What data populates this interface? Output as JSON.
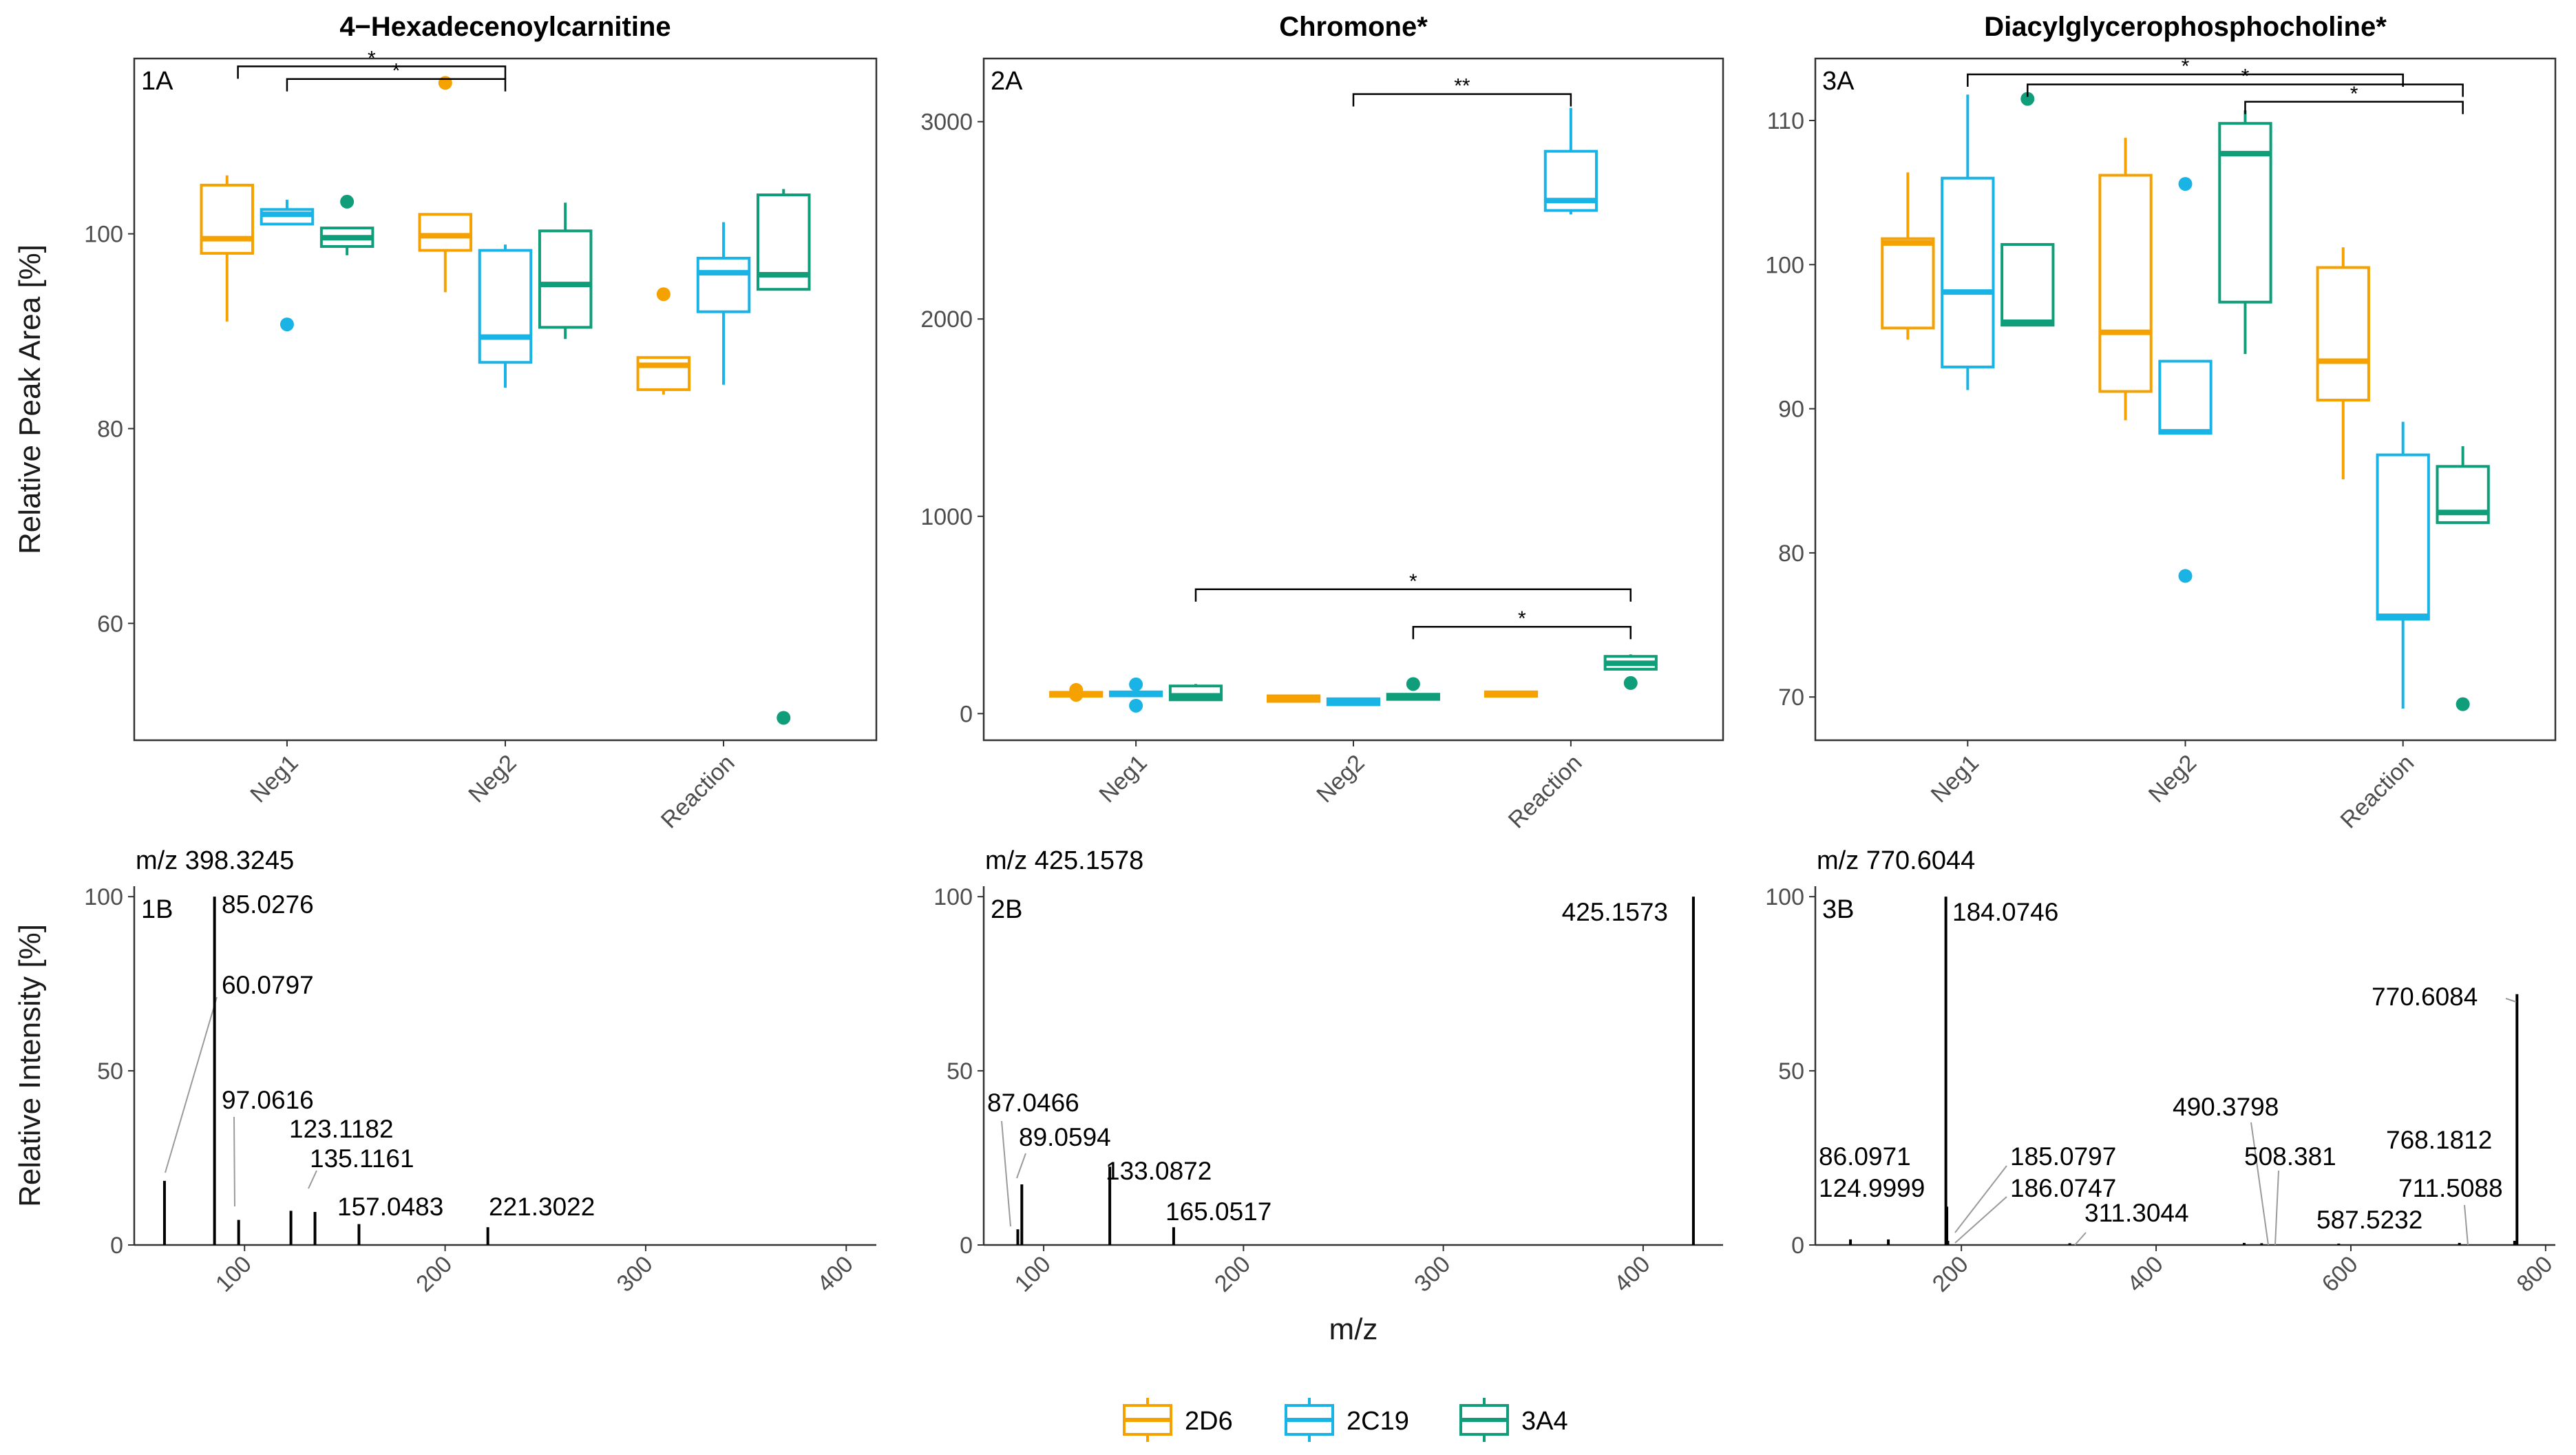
{
  "legend": {
    "items": [
      {
        "label": "2D6",
        "color": "#F5A100"
      },
      {
        "label": "2C19",
        "color": "#1AB3E6"
      },
      {
        "label": "3A4",
        "color": "#0F9E79"
      }
    ]
  },
  "chart_data": [
    {
      "id": "1A",
      "type": "box",
      "title": "4−Hexadecenoylcarnitine",
      "label": "1A",
      "ylabel": "Relative Peak Area [%]",
      "xlabel": "",
      "categories": [
        "Neg1",
        "Neg2",
        "Reaction"
      ],
      "ylim": [
        48,
        118
      ],
      "yticks": [
        60,
        80,
        100
      ],
      "series": [
        {
          "name": "2D6",
          "boxes": [
            {
              "q1": 98,
              "median": 99.5,
              "q3": 105,
              "wlo": 91,
              "whi": 106,
              "outliers": []
            },
            {
              "q1": 98.3,
              "median": 99.8,
              "q3": 102,
              "wlo": 94,
              "whi": 102,
              "outliers": [
                115.5
              ]
            },
            {
              "q1": 84,
              "median": 86.5,
              "q3": 87.3,
              "wlo": 83.5,
              "whi": 87.3,
              "outliers": [
                93.8
              ]
            }
          ]
        },
        {
          "name": "2C19",
          "boxes": [
            {
              "q1": 101,
              "median": 102,
              "q3": 102.5,
              "wlo": 101,
              "whi": 103.5,
              "outliers": [
                90.7
              ]
            },
            {
              "q1": 86.8,
              "median": 89.4,
              "q3": 98.3,
              "wlo": 84.2,
              "whi": 98.9,
              "outliers": []
            },
            {
              "q1": 92,
              "median": 96,
              "q3": 97.5,
              "wlo": 84.5,
              "whi": 101.2,
              "outliers": []
            }
          ]
        },
        {
          "name": "3A4",
          "boxes": [
            {
              "q1": 98.7,
              "median": 99.6,
              "q3": 100.6,
              "wlo": 97.8,
              "whi": 100.6,
              "outliers": [
                103.3
              ]
            },
            {
              "q1": 90.4,
              "median": 94.8,
              "q3": 100.3,
              "wlo": 89.2,
              "whi": 103.2,
              "outliers": []
            },
            {
              "q1": 94.3,
              "median": 95.8,
              "q3": 104,
              "wlo": 94.3,
              "whi": 104.6,
              "outliers": [
                50.3
              ]
            }
          ]
        }
      ],
      "brackets": [
        {
          "x1": 0.775,
          "x2": 2.0,
          "y": 117.2,
          "label": "*"
        },
        {
          "x1": 1.0,
          "x2": 2.0,
          "y": 115.9,
          "label": "*"
        }
      ]
    },
    {
      "id": "2A",
      "type": "box",
      "title": "Chromone*",
      "label": "2A",
      "ylabel": "",
      "xlabel": "",
      "categories": [
        "Neg1",
        "Neg2",
        "Reaction"
      ],
      "ylim": [
        -135,
        3320
      ],
      "yticks": [
        0,
        1000,
        2000,
        3000
      ],
      "series": [
        {
          "name": "2D6",
          "boxes": [
            {
              "q1": 88,
              "median": 98,
              "q3": 108,
              "wlo": 85,
              "whi": 110,
              "outliers": [
                120,
                95
              ]
            },
            {
              "q1": 62,
              "median": 75,
              "q3": 90,
              "wlo": 60,
              "whi": 92,
              "outliers": []
            },
            {
              "q1": 88,
              "median": 100,
              "q3": 110,
              "wlo": 82,
              "whi": 112,
              "outliers": []
            }
          ]
        },
        {
          "name": "2C19",
          "boxes": [
            {
              "q1": 90,
              "median": 100,
              "q3": 110,
              "wlo": 85,
              "whi": 115,
              "outliers": [
                148,
                40
              ]
            },
            {
              "q1": 45,
              "median": 60,
              "q3": 75,
              "wlo": 42,
              "whi": 78,
              "outliers": []
            },
            {
              "q1": 2550,
              "median": 2600,
              "q3": 2850,
              "wlo": 2530,
              "whi": 3070,
              "outliers": []
            }
          ]
        },
        {
          "name": "3A4",
          "boxes": [
            {
              "q1": 70,
              "median": 90,
              "q3": 140,
              "wlo": 65,
              "whi": 150,
              "outliers": []
            },
            {
              "q1": 72,
              "median": 85,
              "q3": 98,
              "wlo": 68,
              "whi": 100,
              "outliers": [
                150
              ]
            },
            {
              "q1": 225,
              "median": 255,
              "q3": 290,
              "wlo": 220,
              "whi": 300,
              "outliers": [
                155
              ]
            }
          ]
        }
      ],
      "brackets": [
        {
          "x1": 2.0,
          "x2": 3.0,
          "y": 3140,
          "label": "**"
        },
        {
          "x1": 1.275,
          "x2": 3.275,
          "y": 630,
          "label": "*"
        },
        {
          "x1": 2.275,
          "x2": 3.275,
          "y": 440,
          "label": "*"
        }
      ]
    },
    {
      "id": "3A",
      "type": "box",
      "title": "Diacylglycerophosphocholine*",
      "label": "3A",
      "ylabel": "",
      "xlabel": "",
      "categories": [
        "Neg1",
        "Neg2",
        "Reaction"
      ],
      "ylim": [
        67,
        114.3
      ],
      "yticks": [
        70,
        80,
        90,
        100,
        110
      ],
      "series": [
        {
          "name": "2D6",
          "boxes": [
            {
              "q1": 95.6,
              "median": 101.5,
              "q3": 101.8,
              "wlo": 94.8,
              "whi": 106.4,
              "outliers": []
            },
            {
              "q1": 91.2,
              "median": 95.3,
              "q3": 106.2,
              "wlo": 89.2,
              "whi": 108.8,
              "outliers": []
            },
            {
              "q1": 90.6,
              "median": 93.3,
              "q3": 99.8,
              "wlo": 85.1,
              "whi": 101.2,
              "outliers": []
            }
          ]
        },
        {
          "name": "2C19",
          "boxes": [
            {
              "q1": 92.9,
              "median": 98.1,
              "q3": 106,
              "wlo": 91.3,
              "whi": 111.8,
              "outliers": []
            },
            {
              "q1": 88.3,
              "median": 88.4,
              "q3": 93.3,
              "wlo": 88.3,
              "whi": 93.3,
              "outliers": [
                105.6,
                78.4
              ]
            },
            {
              "q1": 75.4,
              "median": 75.6,
              "q3": 86.8,
              "wlo": 69.2,
              "whi": 89.1,
              "outliers": []
            }
          ]
        },
        {
          "name": "3A4",
          "boxes": [
            {
              "q1": 95.8,
              "median": 96,
              "q3": 101.4,
              "wlo": 95.8,
              "whi": 101.4,
              "outliers": [
                111.5
              ]
            },
            {
              "q1": 97.4,
              "median": 107.7,
              "q3": 109.8,
              "wlo": 93.8,
              "whi": 110.7,
              "outliers": []
            },
            {
              "q1": 82.1,
              "median": 82.8,
              "q3": 86,
              "wlo": 82.1,
              "whi": 87.4,
              "outliers": [
                69.5
              ]
            }
          ]
        }
      ],
      "brackets": [
        {
          "x1": 1.0,
          "x2": 3.0,
          "y": 113.2,
          "label": "*"
        },
        {
          "x1": 1.275,
          "x2": 3.275,
          "y": 112.5,
          "label": "*"
        },
        {
          "x1": 2.275,
          "x2": 3.275,
          "y": 111.3,
          "label": "*"
        }
      ]
    },
    {
      "id": "1B",
      "type": "spectrum",
      "title": "m/z 398.3245",
      "label": "1B",
      "ylabel": "Relative Intensity [%]",
      "xlabel": "",
      "xlim": [
        45,
        415
      ],
      "ylim": [
        0,
        103
      ],
      "xticks": [
        100,
        200,
        300,
        400
      ],
      "yticks": [
        0,
        50,
        100
      ],
      "peaks": [
        {
          "mz": 60.0797,
          "intensity": 18.4,
          "label": "60.0797"
        },
        {
          "mz": 85.0276,
          "intensity": 100,
          "label": "85.0276"
        },
        {
          "mz": 97.0616,
          "intensity": 7.2,
          "label": "97.0616"
        },
        {
          "mz": 123.1182,
          "intensity": 9.8,
          "label": "123.1182"
        },
        {
          "mz": 135.1161,
          "intensity": 9.5,
          "label": "135.1161"
        },
        {
          "mz": 157.0483,
          "intensity": 6,
          "label": "157.0483"
        },
        {
          "mz": 221.3022,
          "intensity": 5.1,
          "label": "221.3022"
        }
      ]
    },
    {
      "id": "2B",
      "type": "spectrum",
      "title": "m/z 425.1578",
      "label": "2B",
      "ylabel": "",
      "xlabel": "m/z",
      "xlim": [
        70,
        440
      ],
      "ylim": [
        0,
        103
      ],
      "xticks": [
        100,
        200,
        300,
        400
      ],
      "yticks": [
        0,
        50,
        100
      ],
      "peaks": [
        {
          "mz": 87.0466,
          "intensity": 4.5,
          "label": "87.0466"
        },
        {
          "mz": 89.0594,
          "intensity": 17.4,
          "label": "89.0594"
        },
        {
          "mz": 133.0872,
          "intensity": 22.5,
          "label": "133.0872"
        },
        {
          "mz": 165.0517,
          "intensity": 5.1,
          "label": "165.0517"
        },
        {
          "mz": 425.1573,
          "intensity": 100,
          "label": "425.1573"
        }
      ]
    },
    {
      "id": "3B",
      "type": "spectrum",
      "title": "m/z 770.6044",
      "label": "3B",
      "ylabel": "",
      "xlabel": "",
      "xlim": [
        50,
        810
      ],
      "ylim": [
        0,
        103
      ],
      "xticks": [
        200,
        400,
        600,
        800
      ],
      "yticks": [
        0,
        50,
        100
      ],
      "peaks": [
        {
          "mz": 86.0971,
          "intensity": 1.6,
          "label": "86.0971"
        },
        {
          "mz": 124.9999,
          "intensity": 1.6,
          "label": "124.9999"
        },
        {
          "mz": 184.0746,
          "intensity": 100,
          "label": "184.0746"
        },
        {
          "mz": 185.0797,
          "intensity": 11,
          "label": "185.0797"
        },
        {
          "mz": 186.0747,
          "intensity": 1.2,
          "label": "186.0747"
        },
        {
          "mz": 311.3044,
          "intensity": 0.5,
          "label": "311.3044"
        },
        {
          "mz": 490.3798,
          "intensity": 0.6,
          "label": "490.3798"
        },
        {
          "mz": 508.381,
          "intensity": 0.5,
          "label": "508.381"
        },
        {
          "mz": 587.5232,
          "intensity": 0.4,
          "label": "587.5232"
        },
        {
          "mz": 711.5088,
          "intensity": 0.6,
          "label": "711.5088"
        },
        {
          "mz": 768.1812,
          "intensity": 1.2,
          "label": "768.1812"
        },
        {
          "mz": 770.6084,
          "intensity": 72,
          "label": "770.6084"
        }
      ]
    }
  ]
}
